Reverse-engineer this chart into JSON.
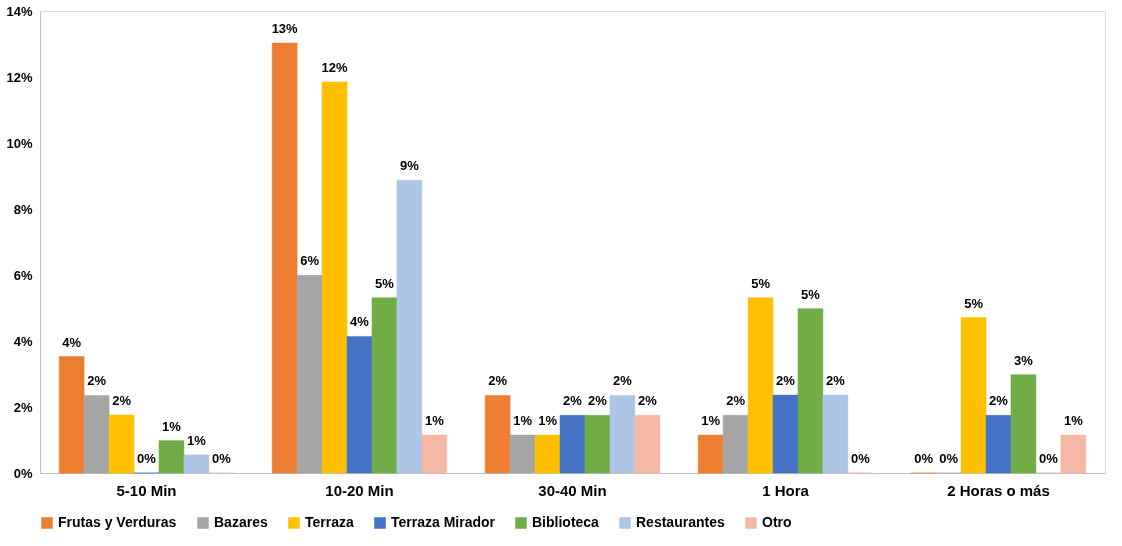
{
  "chart_data": {
    "type": "bar",
    "categories": [
      "5-10 Min",
      "10-20 Min",
      "30-40 Min",
      "1 Hora",
      "2 Horas o más"
    ],
    "ylim": [
      0,
      14
    ],
    "yticks": [
      {
        "value": 0,
        "label": "0%"
      },
      {
        "value": 2,
        "label": "2%"
      },
      {
        "value": 4,
        "label": "4%"
      },
      {
        "value": 6,
        "label": "6%"
      },
      {
        "value": 8,
        "label": "8%"
      },
      {
        "value": 10,
        "label": "10%"
      },
      {
        "value": 12,
        "label": "12%"
      },
      {
        "value": 14,
        "label": "14%"
      }
    ],
    "grid": false,
    "legend": "bottom",
    "series": [
      {
        "name": "Frutas y Verduras",
        "color": "#ed7d31",
        "values": [
          3.53,
          13.03,
          2.35,
          1.15,
          0
        ],
        "value_labels": [
          "4%",
          "13%",
          "2%",
          "1%",
          "0%"
        ]
      },
      {
        "name": "Bazares",
        "color": "#a5a5a5",
        "values": [
          2.35,
          5.99,
          1.15,
          1.75,
          0
        ],
        "value_labels": [
          "2%",
          "6%",
          "1%",
          "2%",
          "0%"
        ]
      },
      {
        "name": "Terraza",
        "color": "#ffc000",
        "values": [
          1.76,
          11.85,
          1.15,
          5.31,
          4.71
        ],
        "value_labels": [
          "2%",
          "12%",
          "1%",
          "5%",
          "5%"
        ]
      },
      {
        "name": "Terraza Mirador",
        "color": "#4472c4",
        "values": [
          0,
          4.14,
          1.75,
          2.36,
          1.75
        ],
        "value_labels": [
          "0%",
          "4%",
          "2%",
          "2%",
          "2%"
        ]
      },
      {
        "name": "Biblioteca",
        "color": "#70ad47",
        "values": [
          0.98,
          5.31,
          1.75,
          4.98,
          2.98
        ],
        "value_labels": [
          "1%",
          "5%",
          "2%",
          "5%",
          "3%"
        ]
      },
      {
        "name": "Restaurantes",
        "color": "#adc6e6",
        "values": [
          0.55,
          8.87,
          2.35,
          2.36,
          0
        ],
        "value_labels": [
          "1%",
          "9%",
          "2%",
          "2%",
          "0%"
        ]
      },
      {
        "name": "Otro",
        "color": "#f4b8a4",
        "values": [
          0,
          1.15,
          1.75,
          0,
          1.15
        ],
        "value_labels": [
          "0%",
          "1%",
          "2%",
          "0%",
          "1%"
        ]
      }
    ]
  }
}
